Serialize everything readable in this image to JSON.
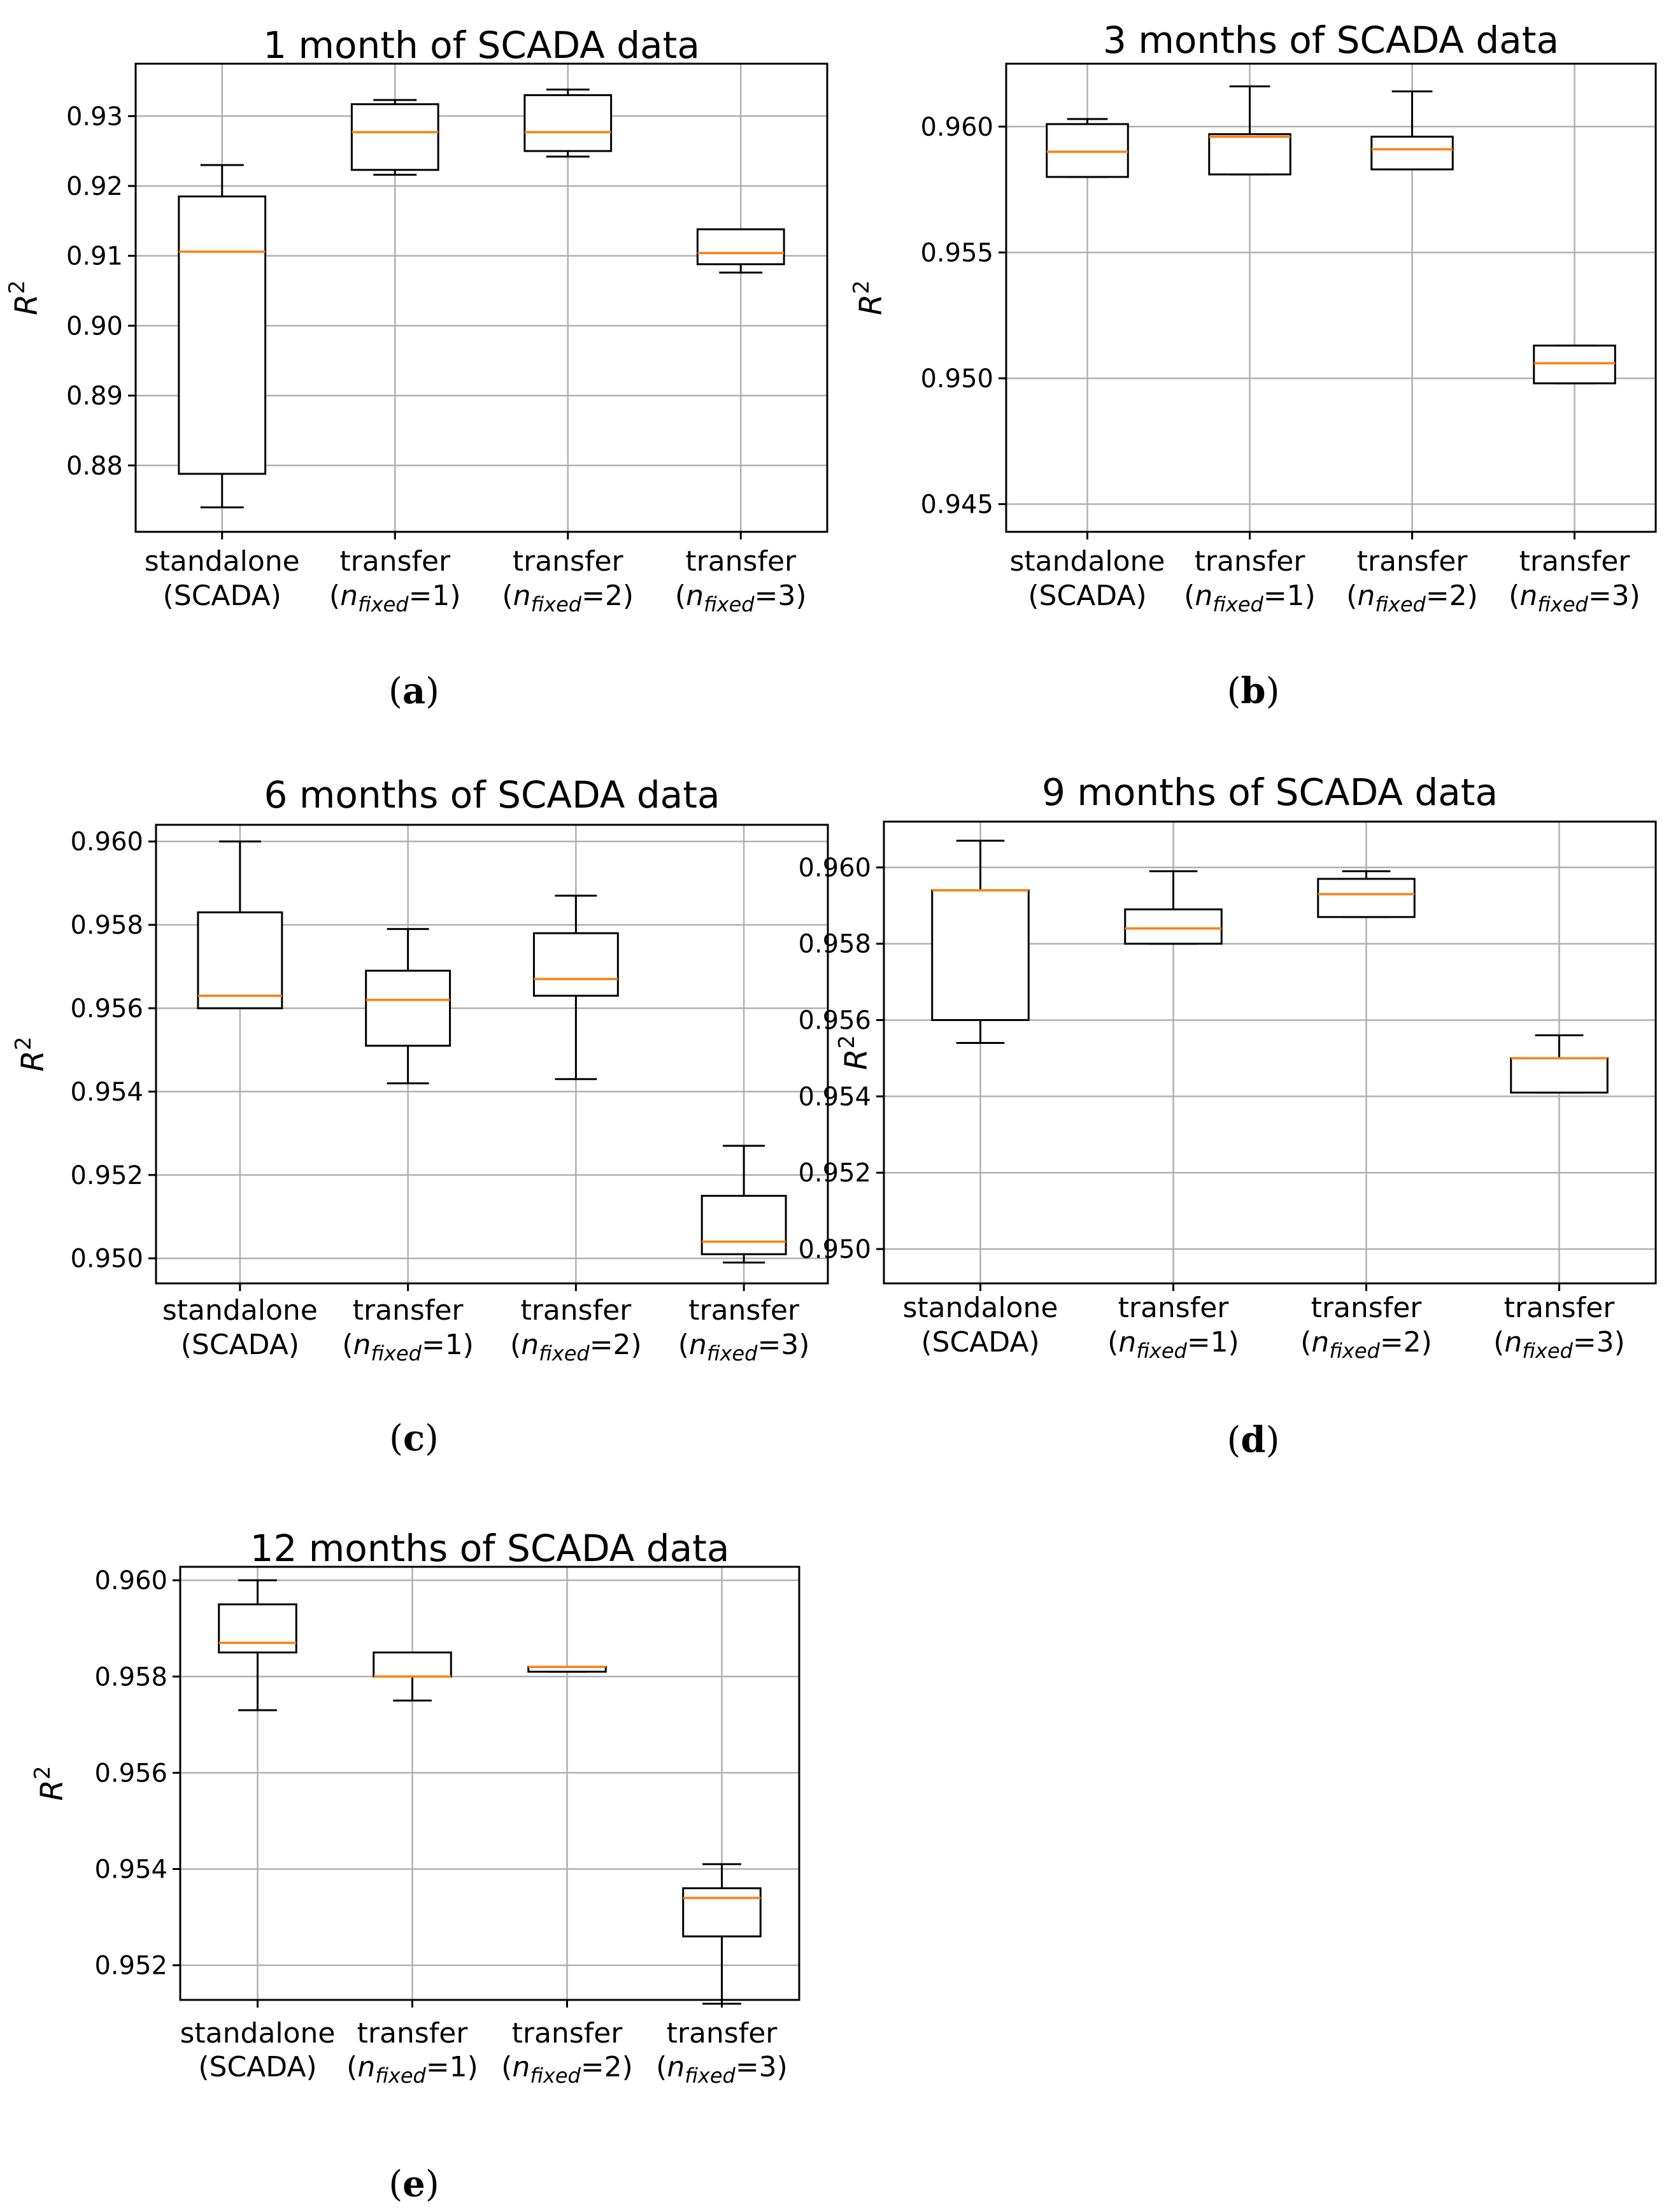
{
  "caption_parts": {
    "open": "(",
    "close": ")"
  },
  "colors": {
    "box": "#000000",
    "median": "#ff7f0e",
    "grid": "#b0b0b0",
    "frame": "#000000"
  },
  "chart_data": [
    {
      "type": "box",
      "title": "1 month of SCADA data",
      "caption": "a",
      "ylabel_base": "R",
      "ylabel_sup": "2",
      "ylim": [
        0.8705,
        0.9375
      ],
      "yticks": [
        0.88,
        0.89,
        0.9,
        0.91,
        0.92,
        0.93
      ],
      "ytick_labels": [
        "0.88",
        "0.89",
        "0.90",
        "0.91",
        "0.92",
        "0.93"
      ],
      "categories": [
        {
          "l1": "standalone",
          "l2": "(SCADA)"
        },
        {
          "l1": "transfer",
          "l2pre": "(",
          "l2var": "n",
          "l2sub": "fixed",
          "l2post": "=1)"
        },
        {
          "l1": "transfer",
          "l2pre": "(",
          "l2var": "n",
          "l2sub": "fixed",
          "l2post": "=2)"
        },
        {
          "l1": "transfer",
          "l2pre": "(",
          "l2var": "n",
          "l2sub": "fixed",
          "l2post": "=3)"
        }
      ],
      "boxes": [
        {
          "whislo": 0.874,
          "q1": 0.8788,
          "med": 0.9106,
          "q3": 0.9185,
          "whishi": 0.923
        },
        {
          "whislo": 0.9216,
          "q1": 0.9223,
          "med": 0.9277,
          "q3": 0.9317,
          "whishi": 0.9323
        },
        {
          "whislo": 0.9242,
          "q1": 0.925,
          "med": 0.9277,
          "q3": 0.933,
          "whishi": 0.9338
        },
        {
          "whislo": 0.9076,
          "q1": 0.9088,
          "med": 0.9104,
          "q3": 0.9138,
          "whishi": 0.9138
        }
      ]
    },
    {
      "type": "box",
      "title": "3 months of SCADA data",
      "caption": "b",
      "ylabel_base": "R",
      "ylabel_sup": "2",
      "ylim": [
        0.9439,
        0.9625
      ],
      "yticks": [
        0.945,
        0.95,
        0.955,
        0.96
      ],
      "ytick_labels": [
        "0.945",
        "0.950",
        "0.955",
        "0.960"
      ],
      "categories": [
        {
          "l1": "standalone",
          "l2": "(SCADA)"
        },
        {
          "l1": "transfer",
          "l2pre": "(",
          "l2var": "n",
          "l2sub": "fixed",
          "l2post": "=1)"
        },
        {
          "l1": "transfer",
          "l2pre": "(",
          "l2var": "n",
          "l2sub": "fixed",
          "l2post": "=2)"
        },
        {
          "l1": "transfer",
          "l2pre": "(",
          "l2var": "n",
          "l2sub": "fixed",
          "l2post": "=3)"
        }
      ],
      "boxes": [
        {
          "whislo": 0.958,
          "q1": 0.958,
          "med": 0.959,
          "q3": 0.9601,
          "whishi": 0.9603
        },
        {
          "whislo": 0.9581,
          "q1": 0.9581,
          "med": 0.9596,
          "q3": 0.9597,
          "whishi": 0.9616
        },
        {
          "whislo": 0.9583,
          "q1": 0.9583,
          "med": 0.9591,
          "q3": 0.9596,
          "whishi": 0.9614
        },
        {
          "whislo": 0.9498,
          "q1": 0.9498,
          "med": 0.9506,
          "q3": 0.9513,
          "whishi": 0.9513
        }
      ]
    },
    {
      "type": "box",
      "title": "6 months of SCADA data",
      "caption": "c",
      "ylabel_base": "R",
      "ylabel_sup": "2",
      "ylim": [
        0.9494,
        0.9604
      ],
      "yticks": [
        0.95,
        0.952,
        0.954,
        0.956,
        0.958,
        0.96
      ],
      "ytick_labels": [
        "0.950",
        "0.952",
        "0.954",
        "0.956",
        "0.958",
        "0.960"
      ],
      "categories": [
        {
          "l1": "standalone",
          "l2": "(SCADA)"
        },
        {
          "l1": "transfer",
          "l2pre": "(",
          "l2var": "n",
          "l2sub": "fixed",
          "l2post": "=1)"
        },
        {
          "l1": "transfer",
          "l2pre": "(",
          "l2var": "n",
          "l2sub": "fixed",
          "l2post": "=2)"
        },
        {
          "l1": "transfer",
          "l2pre": "(",
          "l2var": "n",
          "l2sub": "fixed",
          "l2post": "=3)"
        }
      ],
      "boxes": [
        {
          "whislo": 0.956,
          "q1": 0.956,
          "med": 0.9563,
          "q3": 0.9583,
          "whishi": 0.96
        },
        {
          "whislo": 0.9542,
          "q1": 0.9551,
          "med": 0.9562,
          "q3": 0.9569,
          "whishi": 0.9579
        },
        {
          "whislo": 0.9543,
          "q1": 0.9563,
          "med": 0.9567,
          "q3": 0.9578,
          "whishi": 0.9587
        },
        {
          "whislo": 0.9499,
          "q1": 0.9501,
          "med": 0.9504,
          "q3": 0.9515,
          "whishi": 0.9527
        }
      ]
    },
    {
      "type": "box",
      "title": "9 months of SCADA data",
      "caption": "d",
      "ylabel_base": "R",
      "ylabel_sup": "2",
      "ylim": [
        0.9491,
        0.9612
      ],
      "yticks": [
        0.95,
        0.952,
        0.954,
        0.956,
        0.958,
        0.96
      ],
      "ytick_labels": [
        "0.950",
        "0.952",
        "0.954",
        "0.956",
        "0.958",
        "0.960"
      ],
      "categories": [
        {
          "l1": "standalone",
          "l2": "(SCADA)"
        },
        {
          "l1": "transfer",
          "l2pre": "(",
          "l2var": "n",
          "l2sub": "fixed",
          "l2post": "=1)"
        },
        {
          "l1": "transfer",
          "l2pre": "(",
          "l2var": "n",
          "l2sub": "fixed",
          "l2post": "=2)"
        },
        {
          "l1": "transfer",
          "l2pre": "(",
          "l2var": "n",
          "l2sub": "fixed",
          "l2post": "=3)"
        }
      ],
      "boxes": [
        {
          "whislo": 0.9554,
          "q1": 0.956,
          "med": 0.9594,
          "q3": 0.9594,
          "whishi": 0.9607
        },
        {
          "whislo": 0.958,
          "q1": 0.958,
          "med": 0.9584,
          "q3": 0.9589,
          "whishi": 0.9599
        },
        {
          "whislo": 0.9587,
          "q1": 0.9587,
          "med": 0.9593,
          "q3": 0.9597,
          "whishi": 0.9599
        },
        {
          "whislo": 0.9541,
          "q1": 0.9541,
          "med": 0.955,
          "q3": 0.955,
          "whishi": 0.9556
        }
      ]
    },
    {
      "type": "box",
      "title": "12 months of SCADA data",
      "caption": "e",
      "ylabel_base": "R",
      "ylabel_sup": "2",
      "ylim": [
        0.95128,
        0.96028
      ],
      "yticks": [
        0.952,
        0.954,
        0.956,
        0.958,
        0.96
      ],
      "ytick_labels": [
        "0.952",
        "0.954",
        "0.956",
        "0.958",
        "0.960"
      ],
      "categories": [
        {
          "l1": "standalone",
          "l2": "(SCADA)"
        },
        {
          "l1": "transfer",
          "l2pre": "(",
          "l2var": "n",
          "l2sub": "fixed",
          "l2post": "=1)"
        },
        {
          "l1": "transfer",
          "l2pre": "(",
          "l2var": "n",
          "l2sub": "fixed",
          "l2post": "=2)"
        },
        {
          "l1": "transfer",
          "l2pre": "(",
          "l2var": "n",
          "l2sub": "fixed",
          "l2post": "=3)"
        }
      ],
      "boxes": [
        {
          "whislo": 0.9573,
          "q1": 0.9585,
          "med": 0.9587,
          "q3": 0.9595,
          "whishi": 0.96
        },
        {
          "whislo": 0.9575,
          "q1": 0.958,
          "med": 0.958,
          "q3": 0.9585,
          "whishi": 0.9585
        },
        {
          "whislo": 0.9581,
          "q1": 0.9581,
          "med": 0.9582,
          "q3": 0.9582,
          "whishi": 0.9582
        },
        {
          "whislo": 0.9512,
          "q1": 0.9526,
          "med": 0.9534,
          "q3": 0.9536,
          "whishi": 0.9541
        }
      ]
    }
  ]
}
